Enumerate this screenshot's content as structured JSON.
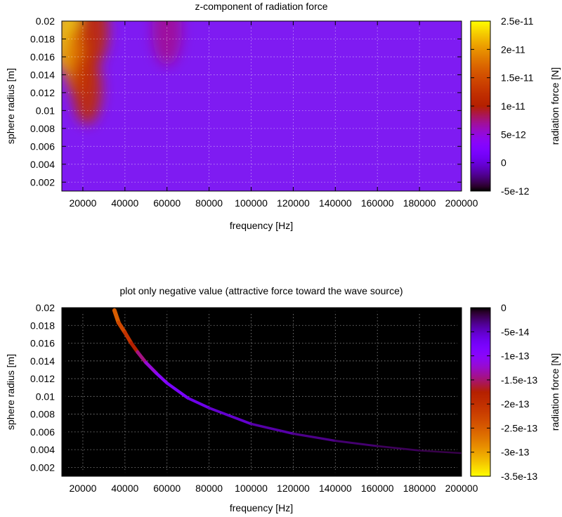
{
  "chart_data": [
    {
      "type": "heatmap",
      "title": "z-component of radiation force",
      "xlabel": "frequency [Hz]",
      "ylabel": "sphere radius [m]",
      "colorbar_label": "radiation force [N]",
      "xlim": [
        10000,
        200000
      ],
      "ylim": [
        0.001,
        0.02
      ],
      "zlim": [
        -5e-12,
        2.5e-11
      ],
      "x_ticks": [
        20000,
        40000,
        60000,
        80000,
        100000,
        120000,
        140000,
        160000,
        180000,
        200000
      ],
      "x_tick_labels": [
        "20000",
        "40000",
        "60000",
        "80000",
        "100000",
        "120000",
        "140000",
        "160000",
        "180000",
        "200000"
      ],
      "y_ticks": [
        0.002,
        0.004,
        0.006,
        0.008,
        0.01,
        0.012,
        0.014,
        0.016,
        0.018,
        0.02
      ],
      "y_tick_labels": [
        "0.002",
        "0.004",
        "0.006",
        "0.008",
        "0.01",
        "0.012",
        "0.014",
        "0.016",
        "0.018",
        "0.02"
      ],
      "cb_ticks": [
        -5e-12,
        0,
        5e-12,
        1e-11,
        1.5e-11,
        2e-11,
        2.5e-11
      ],
      "cb_tick_labels": [
        "-5e-12",
        "0",
        "5e-12",
        "1e-11",
        "1.5e-11",
        "2e-11",
        "2.5e-11"
      ],
      "grid": true,
      "colormap": "gnuplot",
      "background_value": 5e-12,
      "hotspots": [
        {
          "x": 13000,
          "y": 0.018,
          "value": 2.3e-11
        },
        {
          "x": 18000,
          "y": 0.0155,
          "value": 1.8e-11
        },
        {
          "x": 22000,
          "y": 0.0125,
          "value": 1.2e-11
        },
        {
          "x": 25000,
          "y": 0.019,
          "value": 1.2e-11
        },
        {
          "x": 60000,
          "y": 0.019,
          "value": 7e-12
        }
      ]
    },
    {
      "type": "heatmap",
      "title": "plot only negative value (attractive force toward the wave source)",
      "xlabel": "frequency [Hz]",
      "ylabel": "sphere radius [m]",
      "colorbar_label": "radiation force [N]",
      "xlim": [
        10000,
        200000
      ],
      "ylim": [
        0.001,
        0.02
      ],
      "zlim": [
        -3.5e-13,
        0
      ],
      "x_ticks": [
        20000,
        40000,
        60000,
        80000,
        100000,
        120000,
        140000,
        160000,
        180000,
        200000
      ],
      "x_tick_labels": [
        "20000",
        "40000",
        "60000",
        "80000",
        "100000",
        "120000",
        "140000",
        "160000",
        "180000",
        "200000"
      ],
      "y_ticks": [
        0.002,
        0.004,
        0.006,
        0.008,
        0.01,
        0.012,
        0.014,
        0.016,
        0.018,
        0.02
      ],
      "y_tick_labels": [
        "0.002",
        "0.004",
        "0.006",
        "0.008",
        "0.01",
        "0.012",
        "0.014",
        "0.016",
        "0.018",
        "0.02"
      ],
      "cb_ticks": [
        0,
        -5e-14,
        -1e-13,
        -1.5e-13,
        -2e-13,
        -2.5e-13,
        -3e-13,
        -3.5e-13
      ],
      "cb_tick_labels": [
        "0",
        "-5e-14",
        "-1e-13",
        "-1.5e-13",
        "-2e-13",
        "-2.5e-13",
        "-3e-13",
        "-3.5e-13"
      ],
      "grid": true,
      "colormap": "gnuplot reversed",
      "background_value": 0,
      "curve": {
        "description_points": [
          {
            "x": 35000,
            "y": 0.0197,
            "value": -2.6e-13
          },
          {
            "x": 37000,
            "y": 0.0183,
            "value": -2.4e-13
          },
          {
            "x": 40000,
            "y": 0.0172,
            "value": -2.2e-13
          },
          {
            "x": 43000,
            "y": 0.016,
            "value": -1.9e-13
          },
          {
            "x": 46000,
            "y": 0.015,
            "value": -1.6e-13
          },
          {
            "x": 50000,
            "y": 0.0138,
            "value": -1.3e-13
          },
          {
            "x": 55000,
            "y": 0.0126,
            "value": -1.1e-13
          },
          {
            "x": 60000,
            "y": 0.0115,
            "value": -9e-14
          },
          {
            "x": 70000,
            "y": 0.0098,
            "value": -7e-14
          },
          {
            "x": 80000,
            "y": 0.0087,
            "value": -6e-14
          },
          {
            "x": 100000,
            "y": 0.0069,
            "value": -4.5e-14
          },
          {
            "x": 120000,
            "y": 0.0058,
            "value": -3.5e-14
          },
          {
            "x": 140000,
            "y": 0.005,
            "value": -2.8e-14
          },
          {
            "x": 160000,
            "y": 0.0044,
            "value": -2.2e-14
          },
          {
            "x": 180000,
            "y": 0.0039,
            "value": -1.8e-14
          },
          {
            "x": 200000,
            "y": 0.0036,
            "value": -1.5e-14
          }
        ]
      }
    }
  ]
}
